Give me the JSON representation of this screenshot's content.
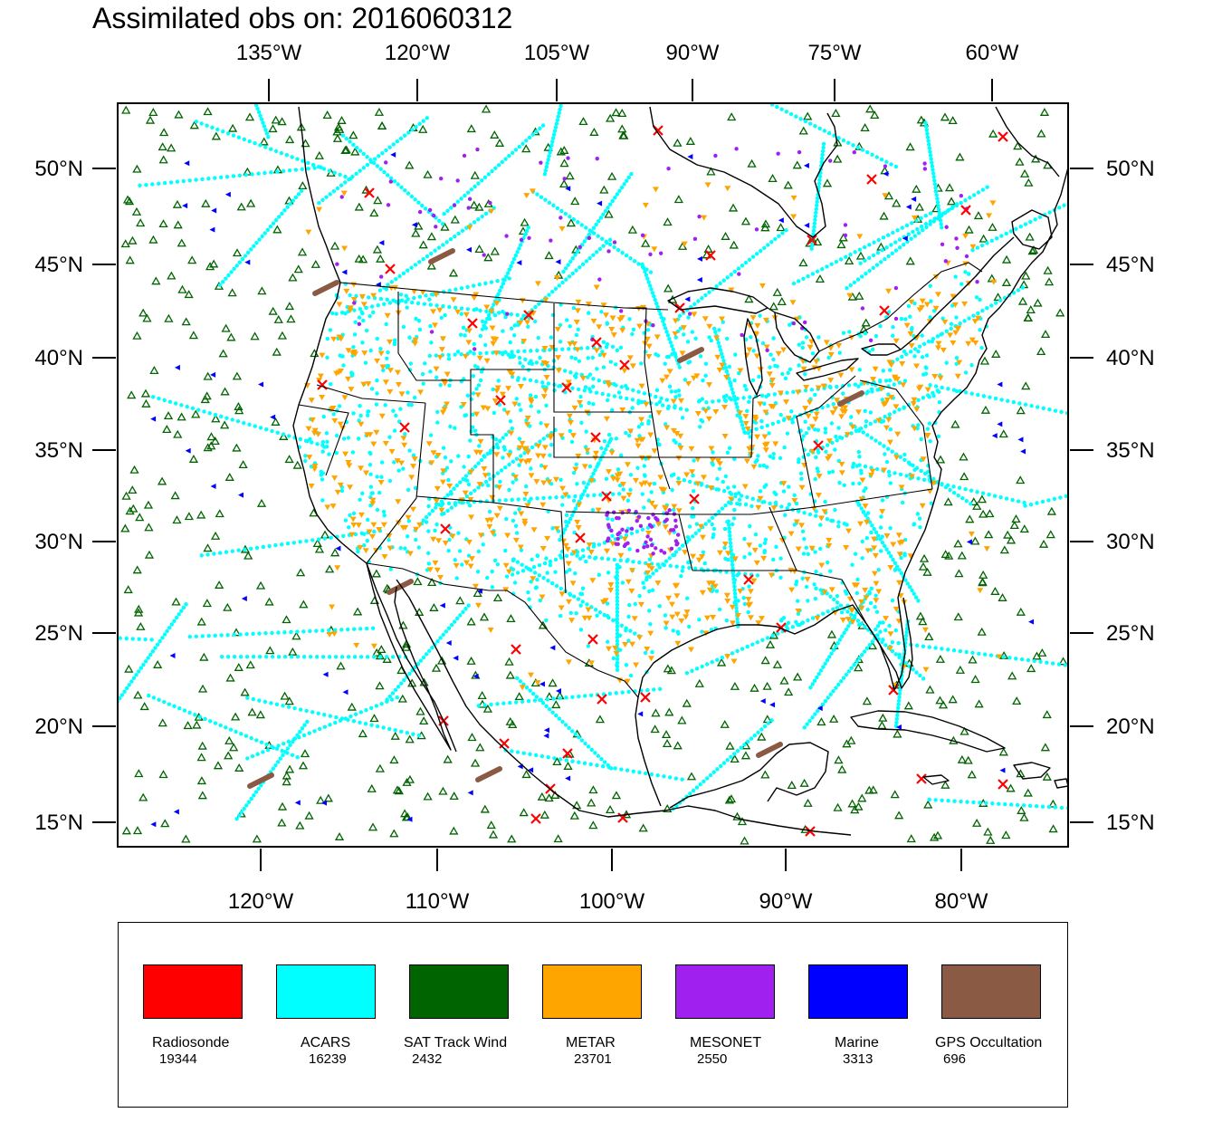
{
  "title": "Assimilated obs on: 2016060312",
  "axes": {
    "top_lon_labels": [
      "135°W",
      "120°W",
      "105°W",
      "90°W",
      "75°W",
      "60°W"
    ],
    "bottom_lon_labels": [
      "120°W",
      "110°W",
      "100°W",
      "90°W",
      "80°W"
    ],
    "lat_labels": [
      "50°N",
      "45°N",
      "40°N",
      "35°N",
      "30°N",
      "25°N",
      "20°N",
      "15°N"
    ]
  },
  "legend": [
    {
      "name": "Radiosonde",
      "count": "19344",
      "color": "#ff0000"
    },
    {
      "name": "ACARS",
      "count": "16239",
      "color": "#00ffff"
    },
    {
      "name": "SAT Track Wind",
      "count": "2432",
      "color": "#006400"
    },
    {
      "name": "METAR",
      "count": "23701",
      "color": "#ffa500"
    },
    {
      "name": "MESONET",
      "count": "2550",
      "color": "#a020f0"
    },
    {
      "name": "Marine",
      "count": "3313",
      "color": "#0000ff"
    },
    {
      "name": "GPS Occultation",
      "count": "696",
      "color": "#8b5a44"
    }
  ]
}
